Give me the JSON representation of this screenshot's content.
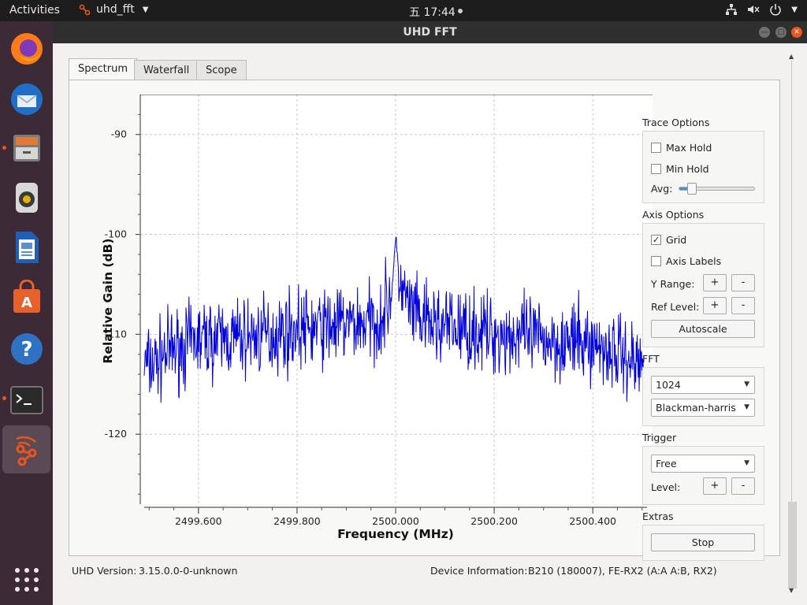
{
  "topbar": {
    "activities": "Activities",
    "app_name": "uhd_fft",
    "clock": "五 17:44"
  },
  "window": {
    "title": "UHD FFT"
  },
  "tabs": [
    {
      "label": "Spectrum",
      "active": true
    },
    {
      "label": "Waterfall",
      "active": false
    },
    {
      "label": "Scope",
      "active": false
    }
  ],
  "trace_options": {
    "title": "Trace Options",
    "max_hold": {
      "label": "Max Hold",
      "checked": false
    },
    "min_hold": {
      "label": "Min Hold",
      "checked": false
    },
    "avg_label": "Avg:",
    "avg_value": 0.12
  },
  "axis_options": {
    "title": "Axis Options",
    "grid": {
      "label": "Grid",
      "checked": true
    },
    "axis_labels": {
      "label": "Axis Labels",
      "checked": false
    },
    "y_range_label": "Y Range:",
    "ref_level_label": "Ref Level:",
    "plus": "+",
    "minus": "-",
    "autoscale": "Autoscale"
  },
  "fft": {
    "title": "FFT",
    "size": "1024",
    "window": "Blackman-harris"
  },
  "trigger": {
    "title": "Trigger",
    "mode": "Free",
    "level_label": "Level:",
    "plus": "+",
    "minus": "-"
  },
  "extras": {
    "title": "Extras",
    "stop": "Stop"
  },
  "status": {
    "uhd_version_label": "UHD Version:",
    "uhd_version": "3.15.0.0-0-unknown",
    "device_info_label": "Device Information:",
    "device_info": "B210 (180007), FE-RX2 (A:A A:B, RX2)"
  },
  "colors": {
    "trace": "#0000dd",
    "accent": "#e95420",
    "grid": "#c8c8c8"
  },
  "chart_data": {
    "type": "line",
    "xlabel": "Frequency (MHz)",
    "ylabel": "Relative Gain (dB)",
    "xlim": [
      2499.49,
      2500.51
    ],
    "ylim": [
      -127,
      -86
    ],
    "x_ticks": [
      "2499.600",
      "2499.800",
      "2500.000",
      "2500.200",
      "2500.400"
    ],
    "x_tick_values": [
      2499.6,
      2499.8,
      2500.0,
      2500.2,
      2500.4
    ],
    "y_ticks": [
      "-90",
      "-100",
      "-110",
      "-120"
    ],
    "y_tick_values": [
      -90,
      -100,
      -110,
      -120
    ],
    "grid": true,
    "series": [
      {
        "x": [
          2499.49,
          2499.51,
          2499.53,
          2499.55,
          2499.58,
          2499.6,
          2499.65,
          2499.7,
          2499.75,
          2499.8,
          2499.85,
          2499.9,
          2499.95,
          2499.97,
          2499.99,
          2499.995,
          2500.0,
          2500.003,
          2500.008,
          2500.015,
          2500.03,
          2500.05,
          2500.1,
          2500.15,
          2500.2,
          2500.25,
          2500.3,
          2500.35,
          2500.4,
          2500.45,
          2500.48,
          2500.51
        ],
        "y": [
          -113,
          -113,
          -112,
          -111.5,
          -111,
          -110.5,
          -110.5,
          -110.3,
          -110,
          -109.5,
          -109.3,
          -109,
          -108.8,
          -108.5,
          -106,
          -104,
          -100.5,
          -102,
          -104.5,
          -106,
          -107.5,
          -108.8,
          -109.2,
          -109.6,
          -110,
          -110.2,
          -110.5,
          -110.8,
          -111,
          -111.8,
          -112.5,
          -113.5
        ]
      }
    ]
  }
}
